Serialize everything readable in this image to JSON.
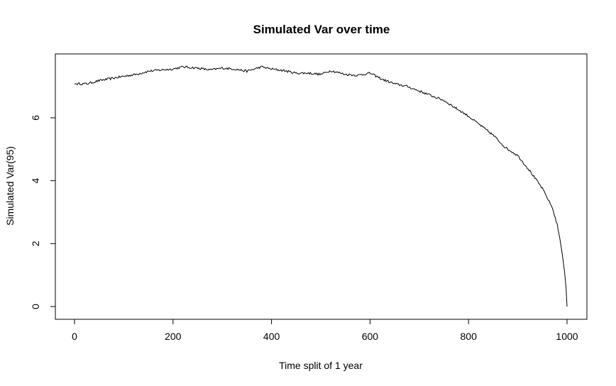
{
  "chart_data": {
    "type": "line",
    "title": "Simulated Var over time",
    "xlabel": "Time split of 1 year",
    "ylabel": "Simulated Var(95)",
    "xlim": [
      0,
      1000
    ],
    "ylim": [
      0,
      7.5
    ],
    "xticks": [
      0,
      200,
      400,
      600,
      800,
      1000
    ],
    "yticks": [
      0,
      2,
      4,
      6
    ],
    "grid": false,
    "legend": "none",
    "line_color": "#000000",
    "series": [
      {
        "x": [
          0,
          25,
          50,
          75,
          100,
          125,
          150,
          175,
          200,
          220,
          250,
          275,
          300,
          325,
          350,
          380,
          400,
          425,
          450,
          475,
          500,
          520,
          550,
          575,
          600,
          625,
          650,
          675,
          700,
          725,
          750,
          775,
          800,
          825,
          850,
          875,
          900,
          925,
          950,
          960,
          970,
          980,
          985,
          990,
          995,
          998,
          1000
        ],
        "y": [
          7.08,
          7.08,
          7.18,
          7.25,
          7.32,
          7.38,
          7.48,
          7.52,
          7.55,
          7.62,
          7.58,
          7.52,
          7.58,
          7.55,
          7.48,
          7.62,
          7.55,
          7.5,
          7.42,
          7.42,
          7.38,
          7.5,
          7.38,
          7.35,
          7.42,
          7.22,
          7.08,
          7.0,
          6.85,
          6.7,
          6.55,
          6.3,
          6.05,
          5.75,
          5.45,
          5.05,
          4.8,
          4.3,
          3.75,
          3.45,
          3.15,
          2.6,
          2.2,
          1.7,
          1.1,
          0.6,
          0.0
        ]
      }
    ]
  }
}
